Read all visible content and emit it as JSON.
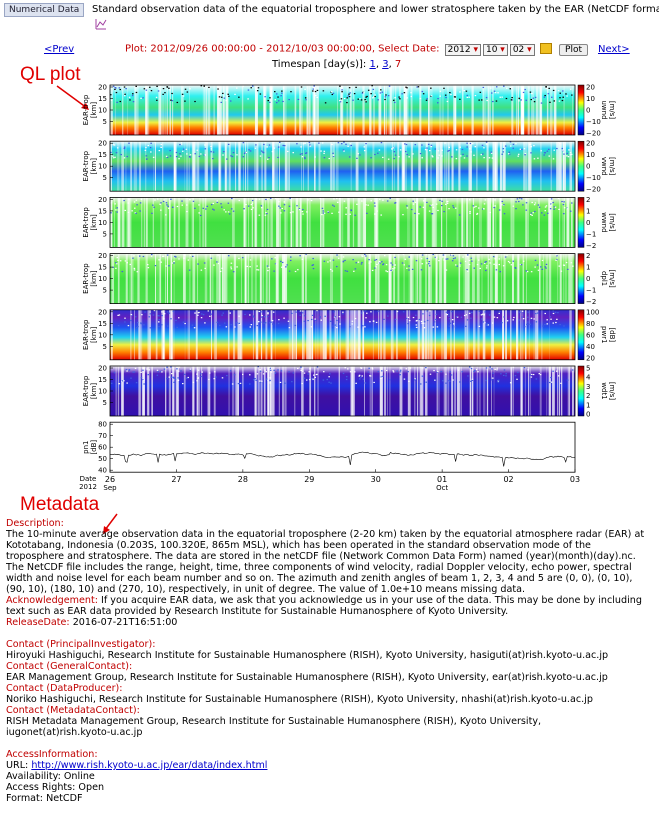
{
  "header": {
    "badge": "Numerical Data",
    "description": "Standard observation data of the equatorial troposphere and lower stratosphere taken by the EAR (NetCDF format)"
  },
  "nav": {
    "prev": "<Prev",
    "plot_range": "Plot: 2012/09/26 00:00:00 - 2012/10/03 00:00:00, Select Date:",
    "year": "2012",
    "month": "10",
    "day": "02",
    "button": "Plot",
    "next": "Next>",
    "timespan_label": "Timespan [day(s)]:",
    "timespans": [
      "1",
      "3",
      "7"
    ]
  },
  "annotations": {
    "ql_plot": "QL plot",
    "metadata": "Metadata"
  },
  "plots": {
    "panels": [
      {
        "ylabel": "EAR-trop",
        "yunit": "[km]",
        "yticks": [
          "20",
          "15",
          "10",
          "5"
        ],
        "cbar_label": "uwnd",
        "cbar_unit": "[m/s]",
        "cbar_ticks": [
          "20",
          "10",
          "0",
          "−10",
          "−20"
        ]
      },
      {
        "ylabel": "EAR-trop",
        "yunit": "[km]",
        "yticks": [
          "20",
          "15",
          "10",
          "5"
        ],
        "cbar_label": "vwnd",
        "cbar_unit": "[m/s]",
        "cbar_ticks": [
          "20",
          "10",
          "0",
          "−10",
          "−20"
        ]
      },
      {
        "ylabel": "EAR-trop",
        "yunit": "[km]",
        "yticks": [
          "20",
          "15",
          "10",
          "5"
        ],
        "cbar_label": "wwnd",
        "cbar_unit": "[m/s]",
        "cbar_ticks": [
          "2",
          "1",
          "0",
          "−1",
          "−2"
        ]
      },
      {
        "ylabel": "EAR-trop",
        "yunit": "[km]",
        "yticks": [
          "20",
          "15",
          "10",
          "5"
        ],
        "cbar_label": "dpl1",
        "cbar_unit": "[m/s]",
        "cbar_ticks": [
          "2",
          "1",
          "0",
          "−1",
          "−2"
        ]
      },
      {
        "ylabel": "EAR-trop",
        "yunit": "[km]",
        "yticks": [
          "20",
          "15",
          "10",
          "5"
        ],
        "cbar_label": "pwr1",
        "cbar_unit": "[dB]",
        "cbar_ticks": [
          "100",
          "80",
          "60",
          "40",
          "20"
        ]
      },
      {
        "ylabel": "EAR-trop",
        "yunit": "[km]",
        "yticks": [
          "20",
          "15",
          "10",
          "5"
        ],
        "cbar_label": "wdt1",
        "cbar_unit": "[m/s]",
        "cbar_ticks": [
          "5",
          "4",
          "3",
          "2",
          "1",
          "0"
        ]
      }
    ],
    "noise": {
      "ylabel": "pn1",
      "yunit": "[dB]",
      "yticks": [
        "80",
        "70",
        "60",
        "50",
        "40"
      ]
    },
    "xaxis": {
      "date_label": "Date",
      "year": "2012",
      "days": [
        "26",
        "27",
        "28",
        "29",
        "30",
        "01",
        "02",
        "03"
      ],
      "months": [
        "Sep",
        null,
        null,
        null,
        null,
        "Oct",
        null,
        null
      ]
    }
  },
  "metadata": {
    "description_label": "Description:",
    "description": [
      "The 10-minute average observation data in the equatorial troposphere (2-20 km) taken by the equatorial atmosphere radar (EAR) at",
      "Kototabang, Indonesia (0.203S, 100.320E, 865m MSL), which has been operated in the standard observation mode of the",
      "troposphere and stratosphere. The data are stored in the netCDF file (Network Common Data Form) named (year)(month)(day).nc.",
      "The NetCDF file includes the range, height, time, three components of wind velocity, radial Doppler velocity, echo power, spectral",
      "width and noise level for each beam number and so on. The azimuth and zenith angles of beam 1, 2, 3, 4 and 5 are (0, 0), (0, 10),",
      "(90, 10), (180, 10) and (270, 10), respectively, in unit of degree. The value of 1.0e+10 means missing data."
    ],
    "acknowledgement_label": "Acknowledgement:",
    "acknowledgement": [
      " If you acquire EAR data, we ask that you acknowledge us in your use of the data. This may be done by including",
      "text such as EAR data provided by Research Institute for Sustainable Humanosphere of Kyoto University."
    ],
    "release_label": "ReleaseDate:",
    "release": " 2016-07-21T16:51:00",
    "contacts": [
      {
        "label": "Contact (PrincipalInvestigator):",
        "lines": [
          "Hiroyuki Hashiguchi, Research Institute for Sustainable Humanosphere (RISH), Kyoto University, hasiguti(at)rish.kyoto-u.ac.jp"
        ]
      },
      {
        "label": "Contact (GeneralContact):",
        "lines": [
          "EAR Management Group, Research Institute for Sustainable Humanosphere (RISH), Kyoto University, ear(at)rish.kyoto-u.ac.jp"
        ]
      },
      {
        "label": "Contact (DataProducer):",
        "lines": [
          "Noriko Hashiguchi, Research Institute for Sustainable Humanosphere (RISH), Kyoto University, nhashi(at)rish.kyoto-u.ac.jp"
        ]
      },
      {
        "label": "Contact (MetadataContact):",
        "lines": [
          "RISH Metadata Management Group, Research Institute for Sustainable Humanosphere (RISH), Kyoto University,",
          "iugonet(at)rish.kyoto-u.ac.jp"
        ]
      }
    ],
    "access_label": "AccessInformation:",
    "url_label": "URL: ",
    "url": "http://www.rish.kyoto-u.ac.jp/ear/data/index.html",
    "availability": "Availability: Online",
    "rights": "Access Rights: Open",
    "format": "Format: NetCDF"
  }
}
